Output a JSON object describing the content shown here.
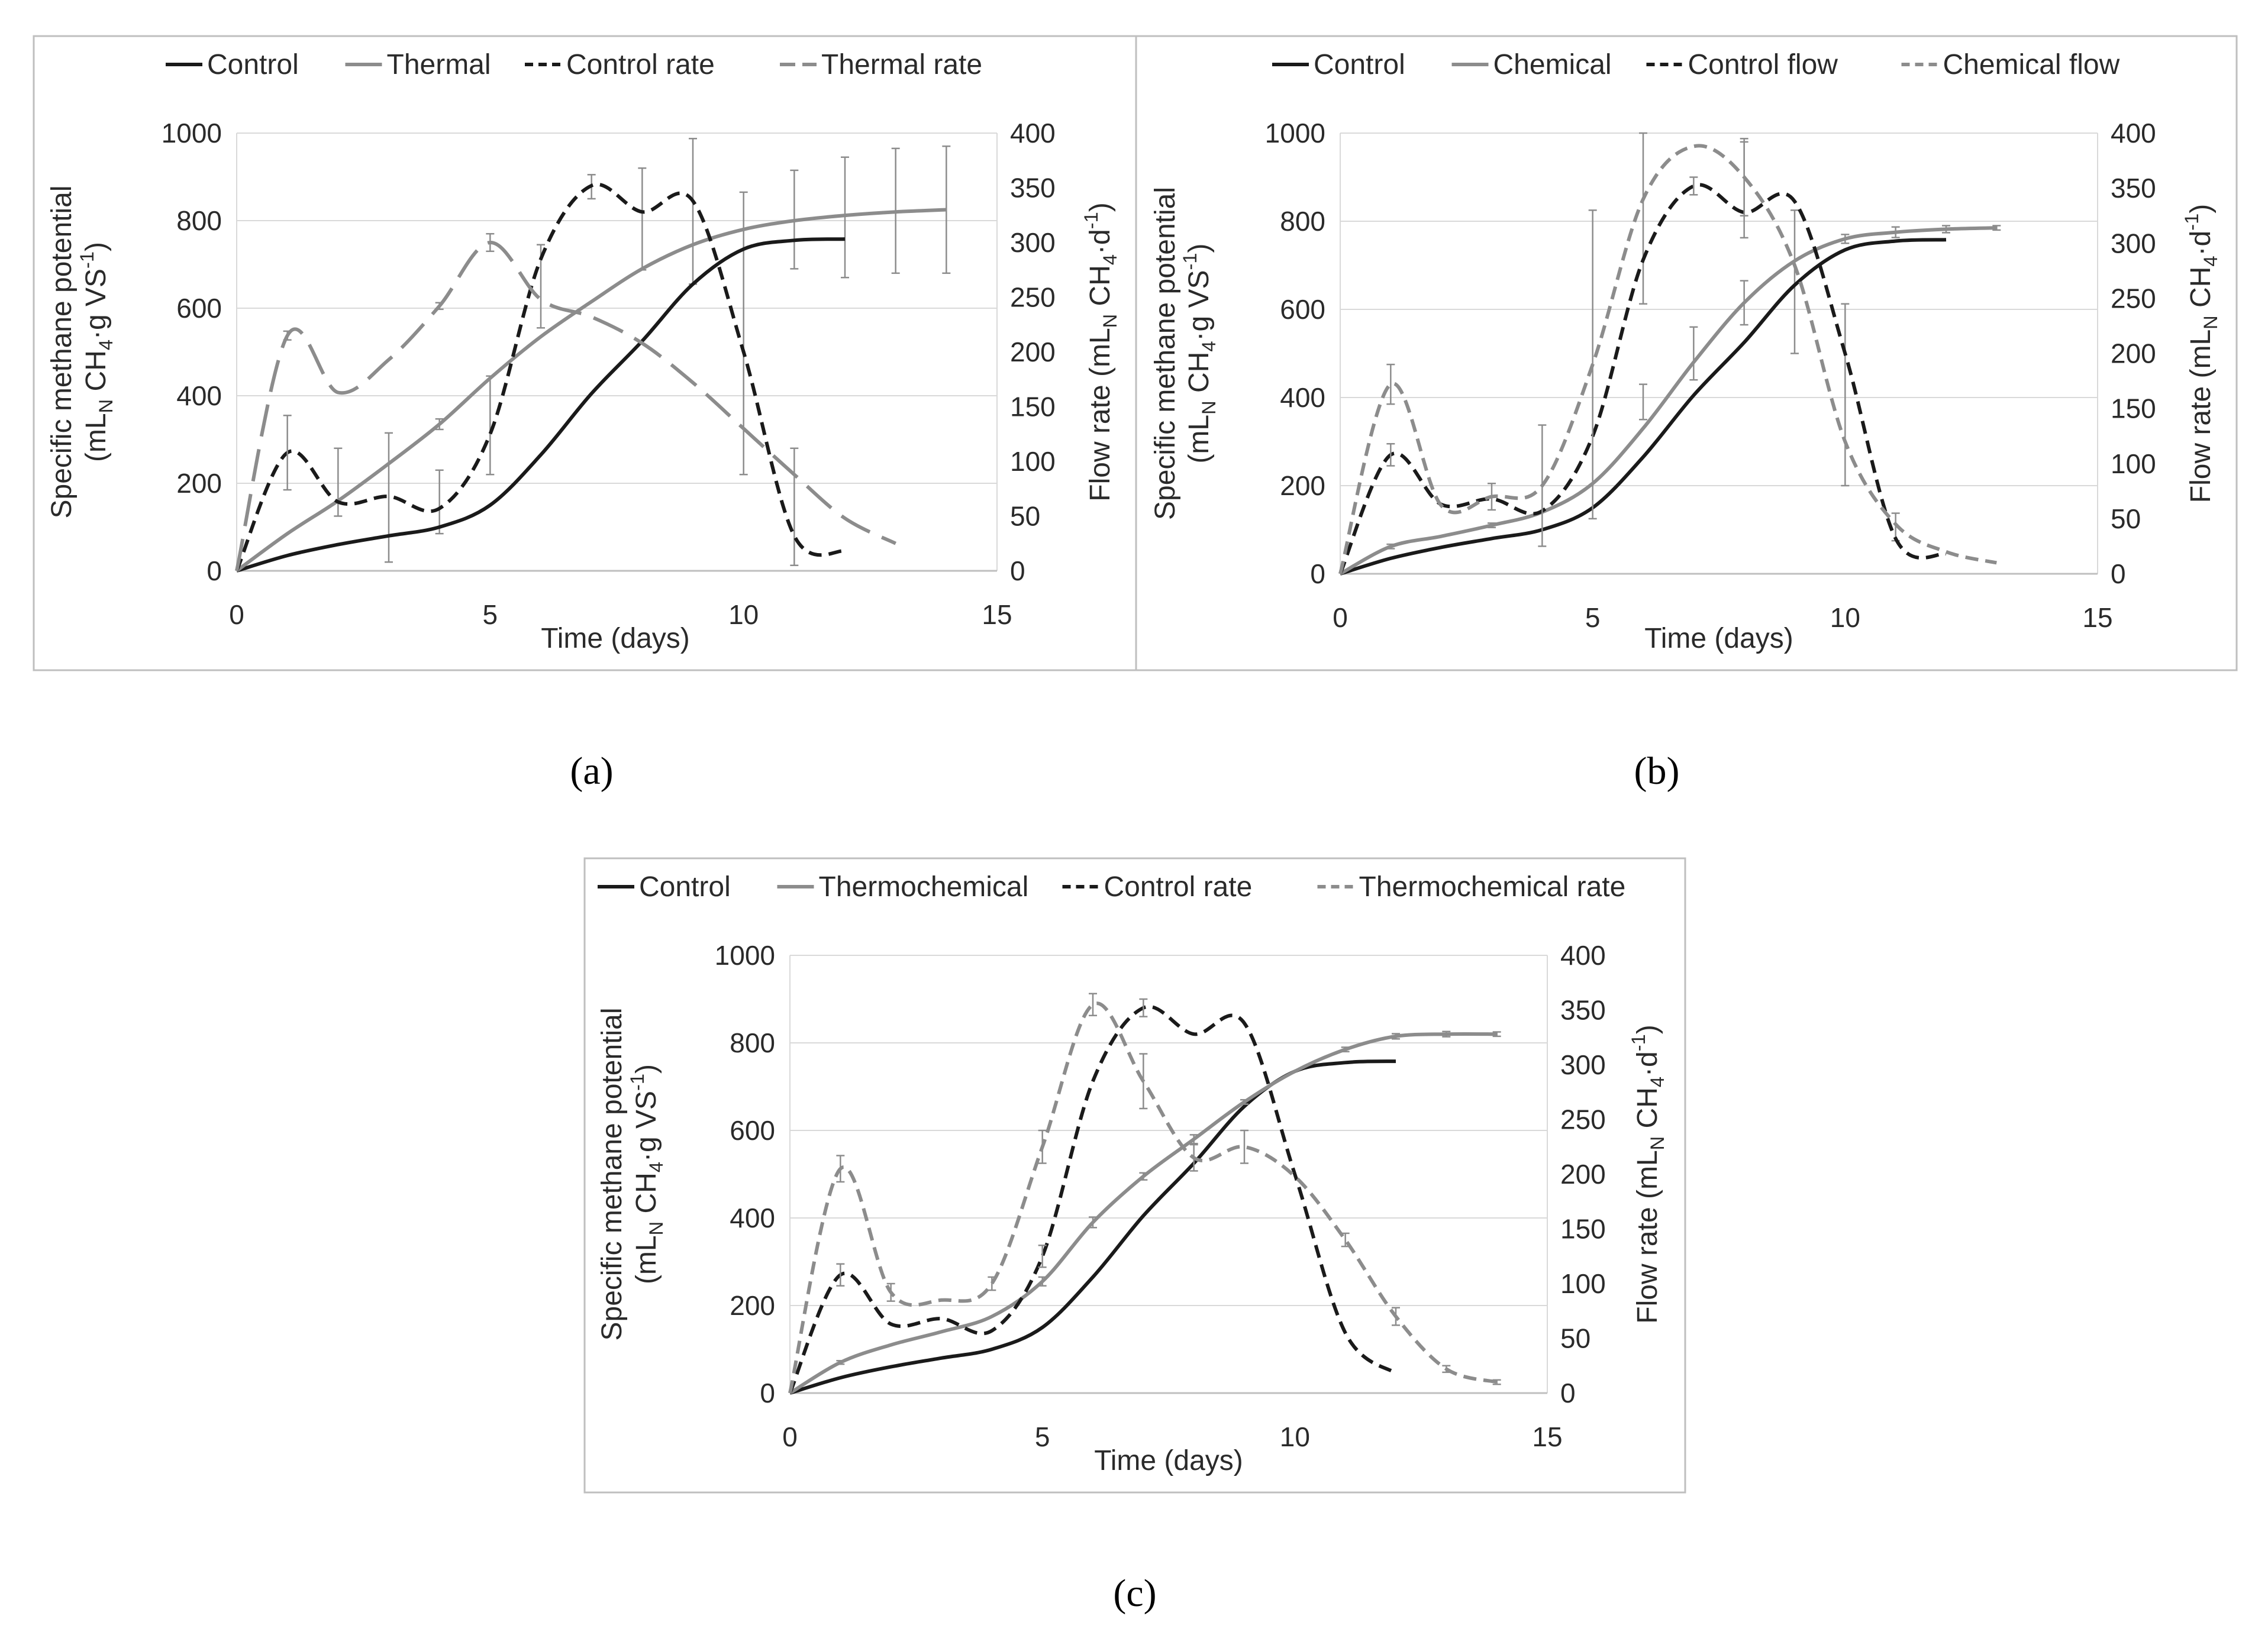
{
  "colors": {
    "control": "#1a1a1a",
    "treatment": "#8c8c8c",
    "grid": "#d9d9d9",
    "frame": "#bfbfbf",
    "errorbar": "#8c8c8c"
  },
  "chart_data": [
    {
      "id": "a",
      "type": "line",
      "caption": "(a)",
      "xlabel": "Time (days)",
      "ylabel": [
        "Specific methane potential",
        "(mL_N CH4·g VS-1)"
      ],
      "y2label": "Flow rate (mL_N CH4·d-1)",
      "xlim": [
        0,
        15
      ],
      "xticks": [
        "0",
        "5",
        "10",
        "15"
      ],
      "ylim": [
        0,
        1000
      ],
      "yticks": [
        "0",
        "200",
        "400",
        "600",
        "800",
        "1000"
      ],
      "y2lim": [
        0,
        400
      ],
      "y2ticks": [
        "0",
        "50",
        "100",
        "150",
        "200",
        "250",
        "300",
        "350",
        "400"
      ],
      "series": [
        {
          "name": "Control",
          "axis": "left",
          "style": "solid",
          "color": "control",
          "x": [
            0,
            1,
            2,
            3,
            4,
            5,
            6,
            7,
            8,
            9,
            10,
            11,
            12
          ],
          "y": [
            0,
            35,
            60,
            80,
            100,
            150,
            265,
            405,
            525,
            655,
            735,
            755,
            758
          ],
          "err": [
            0,
            0,
            0,
            0,
            0,
            0,
            0,
            0,
            0,
            0,
            0,
            0,
            0
          ]
        },
        {
          "name": "Thermal",
          "axis": "left",
          "style": "solid",
          "color": "treatment",
          "x": [
            0,
            1,
            2,
            3,
            4,
            5,
            6,
            7,
            8,
            9,
            10,
            11,
            12,
            13,
            14
          ],
          "y": [
            0,
            85,
            160,
            245,
            335,
            440,
            535,
            615,
            690,
            745,
            780,
            800,
            812,
            820,
            825
          ],
          "err": [
            0,
            0,
            0,
            0,
            12,
            0,
            0,
            0,
            0,
            0,
            0,
            0,
            0,
            0,
            0
          ]
        },
        {
          "name": "Control rate",
          "axis": "right",
          "style": "dash",
          "color": "control",
          "x": [
            0,
            1,
            2,
            3,
            4,
            5,
            6,
            7,
            8,
            9,
            10,
            11,
            12
          ],
          "y": [
            0,
            108,
            63,
            68,
            57,
            125,
            285,
            352,
            328,
            338,
            200,
            32,
            18
          ],
          "err": [
            0,
            34,
            0,
            0,
            0,
            0,
            0,
            0,
            0,
            0,
            0,
            0,
            0
          ]
        },
        {
          "name": "Thermal rate",
          "axis": "right",
          "style": "longdash",
          "color": "treatment",
          "x": [
            0,
            1,
            2,
            3,
            4,
            5,
            6,
            7,
            8,
            9,
            10,
            11,
            12,
            13
          ],
          "y": [
            0,
            215,
            163,
            193,
            242,
            300,
            248,
            232,
            208,
            172,
            130,
            88,
            48,
            25
          ],
          "err": [
            0,
            4,
            0,
            0,
            3,
            8,
            0,
            0,
            0,
            0,
            0,
            0,
            0,
            0
          ]
        }
      ],
      "errorbars": [
        {
          "axis": "right",
          "x": 2,
          "lo": 50,
          "hi": 112
        },
        {
          "axis": "right",
          "x": 3,
          "lo": 8,
          "hi": 126
        },
        {
          "axis": "right",
          "x": 4,
          "lo": 34,
          "hi": 92
        },
        {
          "axis": "right",
          "x": 5,
          "lo": 88,
          "hi": 178
        },
        {
          "axis": "right",
          "x": 6,
          "lo": 222,
          "hi": 298
        },
        {
          "axis": "right",
          "x": 7,
          "lo": 340,
          "hi": 362
        },
        {
          "axis": "right",
          "x": 8,
          "lo": 275,
          "hi": 368
        },
        {
          "axis": "right",
          "x": 9,
          "lo": 262,
          "hi": 395
        },
        {
          "axis": "right",
          "x": 10,
          "lo": 88,
          "hi": 346
        },
        {
          "axis": "right",
          "x": 11,
          "lo": 5,
          "hi": 112
        },
        {
          "axis": "left",
          "x": 11,
          "lo": 690,
          "hi": 915
        },
        {
          "axis": "left",
          "x": 12,
          "lo": 670,
          "hi": 945
        },
        {
          "axis": "left",
          "x": 13,
          "lo": 680,
          "hi": 965
        },
        {
          "axis": "left",
          "x": 14,
          "lo": 680,
          "hi": 970
        }
      ]
    },
    {
      "id": "b",
      "type": "line",
      "caption": "(b)",
      "xlabel": "Time (days)",
      "ylabel": [
        "Specific methane potential",
        "(mL_N CH4·g VS-1)"
      ],
      "y2label": "Flow rate (mL_N CH4·d-1)",
      "xlim": [
        0,
        15
      ],
      "xticks": [
        "0",
        "5",
        "10",
        "15"
      ],
      "ylim": [
        0,
        1000
      ],
      "yticks": [
        "0",
        "200",
        "400",
        "600",
        "800",
        "1000"
      ],
      "y2lim": [
        0,
        400
      ],
      "y2ticks": [
        "0",
        "50",
        "100",
        "150",
        "200",
        "250",
        "300",
        "350",
        "400"
      ],
      "series": [
        {
          "name": "Control",
          "axis": "left",
          "style": "solid",
          "color": "control",
          "x": [
            0,
            1,
            2,
            3,
            4,
            5,
            6,
            7,
            8,
            9,
            10,
            11,
            12
          ],
          "y": [
            0,
            35,
            60,
            80,
            100,
            150,
            265,
            405,
            525,
            655,
            735,
            755,
            758
          ],
          "err": [
            0,
            0,
            0,
            0,
            0,
            0,
            0,
            0,
            0,
            0,
            0,
            0,
            0
          ]
        },
        {
          "name": "Chemical",
          "axis": "left",
          "style": "solid",
          "color": "treatment",
          "x": [
            0,
            1,
            2,
            3,
            4,
            5,
            6,
            7,
            8,
            9,
            10,
            11,
            12,
            13
          ],
          "y": [
            0,
            62,
            85,
            110,
            140,
            205,
            330,
            480,
            615,
            710,
            760,
            775,
            782,
            785
          ],
          "err": [
            0,
            5,
            0,
            5,
            0,
            0,
            0,
            0,
            0,
            0,
            10,
            12,
            8,
            5
          ]
        },
        {
          "name": "Control flow",
          "axis": "right",
          "style": "dash",
          "color": "control",
          "x": [
            0,
            1,
            2,
            3,
            4,
            5,
            6,
            7,
            8,
            9,
            10,
            11,
            12
          ],
          "y": [
            0,
            108,
            63,
            68,
            57,
            125,
            285,
            352,
            328,
            338,
            200,
            32,
            18
          ],
          "err": [
            0,
            10,
            0,
            0,
            0,
            0,
            0,
            8,
            0,
            0,
            0,
            0,
            0
          ]
        },
        {
          "name": "Chemical flow",
          "axis": "right",
          "style": "dash",
          "color": "treatment",
          "x": [
            0,
            1,
            2,
            3,
            4,
            5,
            6,
            7,
            8,
            9,
            10,
            11,
            12,
            13
          ],
          "y": [
            0,
            172,
            62,
            70,
            80,
            190,
            340,
            388,
            360,
            280,
            120,
            45,
            20,
            10
          ],
          "err": [
            0,
            18,
            0,
            12,
            55,
            140,
            0,
            0,
            35,
            0,
            0,
            0,
            0,
            0
          ]
        }
      ],
      "errorbars": [
        {
          "axis": "left",
          "x": 6,
          "lo": 350,
          "hi": 430
        },
        {
          "axis": "left",
          "x": 7,
          "lo": 440,
          "hi": 560
        },
        {
          "axis": "left",
          "x": 8,
          "lo": 565,
          "hi": 665
        },
        {
          "axis": "right",
          "x": 6,
          "lo": 245,
          "hi": 400
        },
        {
          "axis": "right",
          "x": 8,
          "lo": 305,
          "hi": 392
        },
        {
          "axis": "right",
          "x": 9,
          "lo": 200,
          "hi": 330
        },
        {
          "axis": "right",
          "x": 10,
          "lo": 80,
          "hi": 245
        },
        {
          "axis": "right",
          "x": 11,
          "lo": 30,
          "hi": 55
        }
      ]
    },
    {
      "id": "c",
      "type": "line",
      "caption": "(c)",
      "xlabel": "Time (days)",
      "ylabel": [
        "Specific methane potential",
        "(mL_N CH4·g VS-1)"
      ],
      "y2label": "Flow rate (mL_N CH4·d-1)",
      "xlim": [
        0,
        15
      ],
      "xticks": [
        "0",
        "5",
        "10",
        "15"
      ],
      "ylim": [
        0,
        1000
      ],
      "yticks": [
        "0",
        "200",
        "400",
        "600",
        "800",
        "1000"
      ],
      "y2lim": [
        0,
        400
      ],
      "y2ticks": [
        "0",
        "50",
        "100",
        "150",
        "200",
        "250",
        "300",
        "350",
        "400"
      ],
      "series": [
        {
          "name": "Control",
          "axis": "left",
          "style": "solid",
          "color": "control",
          "x": [
            0,
            1,
            2,
            3,
            4,
            5,
            6,
            7,
            8,
            9,
            10,
            11,
            12
          ],
          "y": [
            0,
            35,
            60,
            80,
            100,
            150,
            265,
            405,
            525,
            655,
            735,
            755,
            758
          ],
          "err": [
            0,
            0,
            0,
            0,
            0,
            0,
            0,
            0,
            0,
            0,
            0,
            0,
            0
          ]
        },
        {
          "name": "Thermochemical",
          "axis": "left",
          "style": "solid",
          "color": "treatment",
          "x": [
            0,
            1,
            2,
            3,
            4,
            5,
            6,
            7,
            8,
            9,
            10,
            11,
            12,
            13,
            14
          ],
          "y": [
            0,
            70,
            110,
            140,
            175,
            255,
            390,
            495,
            580,
            665,
            735,
            785,
            815,
            820,
            820
          ],
          "err": [
            0,
            4,
            0,
            0,
            0,
            10,
            12,
            8,
            10,
            5,
            0,
            5,
            6,
            6,
            5
          ]
        },
        {
          "name": "Control rate",
          "axis": "right",
          "style": "dash",
          "color": "control",
          "x": [
            0,
            1,
            2,
            3,
            4,
            5,
            6,
            7,
            8,
            9,
            10,
            11,
            12
          ],
          "y": [
            0,
            108,
            63,
            68,
            57,
            125,
            285,
            352,
            328,
            338,
            200,
            55,
            18
          ],
          "err": [
            0,
            10,
            0,
            0,
            0,
            10,
            0,
            8,
            0,
            0,
            0,
            0,
            0
          ]
        },
        {
          "name": "Thermochemical rate",
          "axis": "right",
          "style": "dash",
          "color": "treatment",
          "x": [
            0,
            1,
            2,
            3,
            4,
            5,
            6,
            7,
            8,
            9,
            10,
            11,
            12,
            13,
            14
          ],
          "y": [
            0,
            205,
            92,
            85,
            100,
            225,
            355,
            285,
            215,
            225,
            198,
            140,
            70,
            22,
            10
          ],
          "err": [
            0,
            12,
            8,
            0,
            6,
            15,
            10,
            25,
            12,
            15,
            0,
            6,
            8,
            3,
            2
          ]
        }
      ],
      "errorbars": []
    }
  ]
}
